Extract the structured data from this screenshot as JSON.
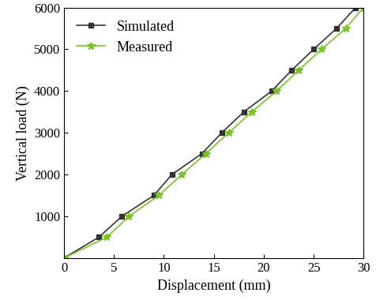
{
  "chart_data": {
    "type": "line",
    "x_label": "Displacement (mm)",
    "y_label": "Vertical load (N)",
    "series": [
      {
        "name": "Simulated",
        "color": "#333333",
        "marker": "square",
        "line_style": "solid",
        "x": [
          0,
          3.5,
          5.8,
          9.0,
          10.8,
          13.8,
          15.8,
          18.0,
          20.8,
          22.8,
          25.0,
          27.3,
          29.2
        ],
        "values": [
          0,
          500,
          1000,
          1500,
          2000,
          2500,
          3000,
          3500,
          4000,
          4500,
          5000,
          5500,
          6000
        ]
      },
      {
        "name": "Measured",
        "color": "#7cc02a",
        "marker": "star",
        "line_style": "solid",
        "x": [
          0,
          4.3,
          6.5,
          9.5,
          11.8,
          14.2,
          16.5,
          18.8,
          21.3,
          23.5,
          25.8,
          28.2,
          30.0
        ],
        "values": [
          0,
          500,
          1000,
          1500,
          2000,
          2500,
          3000,
          3500,
          4000,
          4500,
          5000,
          5500,
          6000
        ]
      }
    ],
    "xlim": [
      0,
      30
    ],
    "xticks": [
      0,
      5,
      10,
      15,
      20,
      25,
      30
    ],
    "ylim": [
      0,
      6000
    ],
    "yticks": [
      1000,
      2000,
      3000,
      4000,
      5000,
      6000
    ],
    "grid": false,
    "legend": "upper left"
  }
}
